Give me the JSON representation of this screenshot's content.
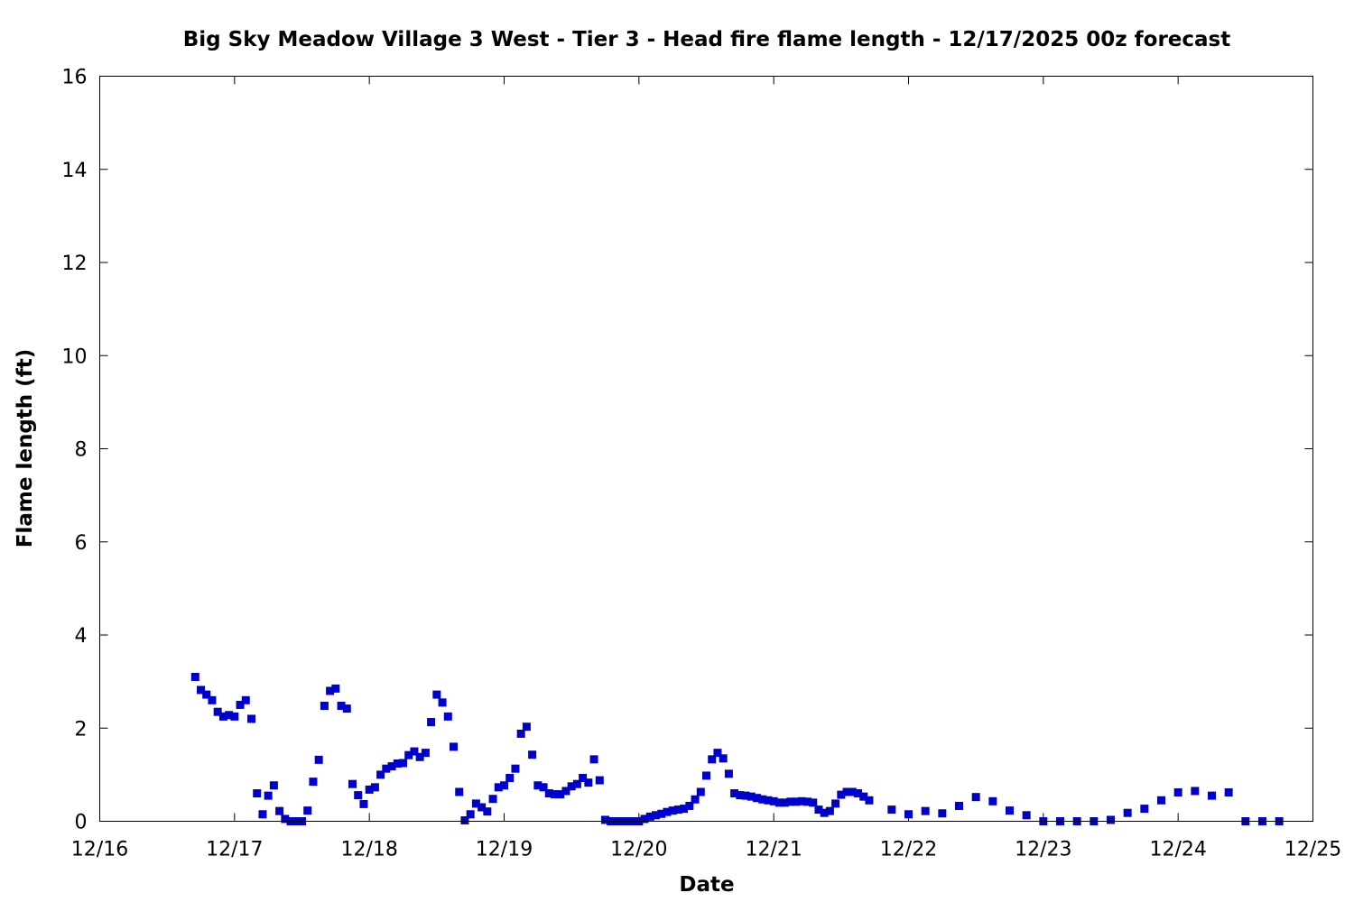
{
  "chart_data": {
    "type": "scatter",
    "title": "Big Sky Meadow Village 3 West - Tier 3 - Head fire flame length - 12/17/2025 00z forecast",
    "xlabel": "Date",
    "ylabel": "Flame length (ft)",
    "x_axis_type": "date",
    "xlim": [
      "2025-12-16T00:00",
      "2025-12-25T00:00"
    ],
    "ylim": [
      0,
      16
    ],
    "x_tick_labels": [
      "12/16",
      "12/17",
      "12/18",
      "12/19",
      "12/20",
      "12/21",
      "12/22",
      "12/23",
      "12/24",
      "12/25"
    ],
    "y_ticks": [
      0,
      2,
      4,
      6,
      8,
      10,
      12,
      14,
      16
    ],
    "grid": false,
    "legend": "none",
    "marker": "square",
    "color": "#0000cc",
    "series": [
      {
        "points": [
          [
            "2025-12-16T17:00",
            3.1
          ],
          [
            "2025-12-16T18:00",
            2.82
          ],
          [
            "2025-12-16T19:00",
            2.72
          ],
          [
            "2025-12-16T20:00",
            2.6
          ],
          [
            "2025-12-16T21:00",
            2.35
          ],
          [
            "2025-12-16T22:00",
            2.25
          ],
          [
            "2025-12-16T23:00",
            2.28
          ],
          [
            "2025-12-17T00:00",
            2.25
          ],
          [
            "2025-12-17T01:00",
            2.5
          ],
          [
            "2025-12-17T02:00",
            2.6
          ],
          [
            "2025-12-17T03:00",
            2.2
          ],
          [
            "2025-12-17T04:00",
            0.6
          ],
          [
            "2025-12-17T05:00",
            0.15
          ],
          [
            "2025-12-17T06:00",
            0.55
          ],
          [
            "2025-12-17T07:00",
            0.77
          ],
          [
            "2025-12-17T08:00",
            0.22
          ],
          [
            "2025-12-17T09:00",
            0.05
          ],
          [
            "2025-12-17T10:00",
            0.0
          ],
          [
            "2025-12-17T11:00",
            0.0
          ],
          [
            "2025-12-17T12:00",
            0.0
          ],
          [
            "2025-12-17T13:00",
            0.23
          ],
          [
            "2025-12-17T14:00",
            0.85
          ],
          [
            "2025-12-17T15:00",
            1.32
          ],
          [
            "2025-12-17T16:00",
            2.48
          ],
          [
            "2025-12-17T17:00",
            2.8
          ],
          [
            "2025-12-17T18:00",
            2.85
          ],
          [
            "2025-12-17T19:00",
            2.48
          ],
          [
            "2025-12-17T20:00",
            2.42
          ],
          [
            "2025-12-17T21:00",
            0.8
          ],
          [
            "2025-12-17T22:00",
            0.56
          ],
          [
            "2025-12-17T23:00",
            0.37
          ],
          [
            "2025-12-18T00:00",
            0.68
          ],
          [
            "2025-12-18T01:00",
            0.73
          ],
          [
            "2025-12-18T02:00",
            1.0
          ],
          [
            "2025-12-18T03:00",
            1.13
          ],
          [
            "2025-12-18T04:00",
            1.18
          ],
          [
            "2025-12-18T05:00",
            1.24
          ],
          [
            "2025-12-18T06:00",
            1.25
          ],
          [
            "2025-12-18T07:00",
            1.42
          ],
          [
            "2025-12-18T08:00",
            1.5
          ],
          [
            "2025-12-18T09:00",
            1.38
          ],
          [
            "2025-12-18T10:00",
            1.47
          ],
          [
            "2025-12-18T11:00",
            2.13
          ],
          [
            "2025-12-18T12:00",
            2.72
          ],
          [
            "2025-12-18T13:00",
            2.55
          ],
          [
            "2025-12-18T14:00",
            2.25
          ],
          [
            "2025-12-18T15:00",
            1.6
          ],
          [
            "2025-12-18T16:00",
            0.63
          ],
          [
            "2025-12-18T17:00",
            0.02
          ],
          [
            "2025-12-18T18:00",
            0.15
          ],
          [
            "2025-12-18T19:00",
            0.38
          ],
          [
            "2025-12-18T20:00",
            0.3
          ],
          [
            "2025-12-18T21:00",
            0.21
          ],
          [
            "2025-12-18T22:00",
            0.48
          ],
          [
            "2025-12-18T23:00",
            0.73
          ],
          [
            "2025-12-19T00:00",
            0.77
          ],
          [
            "2025-12-19T01:00",
            0.93
          ],
          [
            "2025-12-19T02:00",
            1.13
          ],
          [
            "2025-12-19T03:00",
            1.88
          ],
          [
            "2025-12-19T04:00",
            2.03
          ],
          [
            "2025-12-19T05:00",
            1.43
          ],
          [
            "2025-12-19T06:00",
            0.77
          ],
          [
            "2025-12-19T07:00",
            0.73
          ],
          [
            "2025-12-19T08:00",
            0.6
          ],
          [
            "2025-12-19T09:00",
            0.58
          ],
          [
            "2025-12-19T10:00",
            0.58
          ],
          [
            "2025-12-19T11:00",
            0.65
          ],
          [
            "2025-12-19T12:00",
            0.75
          ],
          [
            "2025-12-19T13:00",
            0.8
          ],
          [
            "2025-12-19T14:00",
            0.93
          ],
          [
            "2025-12-19T15:00",
            0.83
          ],
          [
            "2025-12-19T16:00",
            1.33
          ],
          [
            "2025-12-19T17:00",
            0.88
          ],
          [
            "2025-12-19T18:00",
            0.03
          ],
          [
            "2025-12-19T19:00",
            0.0
          ],
          [
            "2025-12-19T20:00",
            0.0
          ],
          [
            "2025-12-19T21:00",
            0.0
          ],
          [
            "2025-12-19T22:00",
            0.0
          ],
          [
            "2025-12-19T23:00",
            0.0
          ],
          [
            "2025-12-20T00:00",
            0.0
          ],
          [
            "2025-12-20T01:00",
            0.05
          ],
          [
            "2025-12-20T02:00",
            0.1
          ],
          [
            "2025-12-20T03:00",
            0.13
          ],
          [
            "2025-12-20T04:00",
            0.16
          ],
          [
            "2025-12-20T05:00",
            0.2
          ],
          [
            "2025-12-20T06:00",
            0.23
          ],
          [
            "2025-12-20T07:00",
            0.25
          ],
          [
            "2025-12-20T08:00",
            0.27
          ],
          [
            "2025-12-20T09:00",
            0.33
          ],
          [
            "2025-12-20T10:00",
            0.47
          ],
          [
            "2025-12-20T11:00",
            0.63
          ],
          [
            "2025-12-20T12:00",
            0.98
          ],
          [
            "2025-12-20T13:00",
            1.33
          ],
          [
            "2025-12-20T14:00",
            1.47
          ],
          [
            "2025-12-20T15:00",
            1.35
          ],
          [
            "2025-12-20T16:00",
            1.02
          ],
          [
            "2025-12-20T17:00",
            0.6
          ],
          [
            "2025-12-20T18:00",
            0.56
          ],
          [
            "2025-12-20T19:00",
            0.55
          ],
          [
            "2025-12-20T20:00",
            0.53
          ],
          [
            "2025-12-20T21:00",
            0.5
          ],
          [
            "2025-12-20T22:00",
            0.47
          ],
          [
            "2025-12-20T23:00",
            0.45
          ],
          [
            "2025-12-21T00:00",
            0.43
          ],
          [
            "2025-12-21T01:00",
            0.4
          ],
          [
            "2025-12-21T02:00",
            0.4
          ],
          [
            "2025-12-21T03:00",
            0.42
          ],
          [
            "2025-12-21T04:00",
            0.42
          ],
          [
            "2025-12-21T05:00",
            0.43
          ],
          [
            "2025-12-21T06:00",
            0.42
          ],
          [
            "2025-12-21T07:00",
            0.4
          ],
          [
            "2025-12-21T08:00",
            0.25
          ],
          [
            "2025-12-21T09:00",
            0.18
          ],
          [
            "2025-12-21T10:00",
            0.22
          ],
          [
            "2025-12-21T11:00",
            0.38
          ],
          [
            "2025-12-21T12:00",
            0.57
          ],
          [
            "2025-12-21T13:00",
            0.63
          ],
          [
            "2025-12-21T14:00",
            0.63
          ],
          [
            "2025-12-21T15:00",
            0.6
          ],
          [
            "2025-12-21T16:00",
            0.53
          ],
          [
            "2025-12-21T17:00",
            0.45
          ],
          [
            "2025-12-21T21:00",
            0.25
          ],
          [
            "2025-12-22T00:00",
            0.15
          ],
          [
            "2025-12-22T03:00",
            0.22
          ],
          [
            "2025-12-22T06:00",
            0.17
          ],
          [
            "2025-12-22T09:00",
            0.33
          ],
          [
            "2025-12-22T12:00",
            0.52
          ],
          [
            "2025-12-22T15:00",
            0.43
          ],
          [
            "2025-12-22T18:00",
            0.23
          ],
          [
            "2025-12-22T21:00",
            0.13
          ],
          [
            "2025-12-23T00:00",
            0.0
          ],
          [
            "2025-12-23T03:00",
            0.0
          ],
          [
            "2025-12-23T06:00",
            0.0
          ],
          [
            "2025-12-23T09:00",
            0.0
          ],
          [
            "2025-12-23T12:00",
            0.03
          ],
          [
            "2025-12-23T15:00",
            0.18
          ],
          [
            "2025-12-23T18:00",
            0.27
          ],
          [
            "2025-12-23T21:00",
            0.45
          ],
          [
            "2025-12-24T00:00",
            0.62
          ],
          [
            "2025-12-24T03:00",
            0.65
          ],
          [
            "2025-12-24T06:00",
            0.55
          ],
          [
            "2025-12-24T09:00",
            0.62
          ],
          [
            "2025-12-24T12:00",
            0.0
          ],
          [
            "2025-12-24T15:00",
            0.0
          ],
          [
            "2025-12-24T18:00",
            0.0
          ]
        ]
      }
    ]
  }
}
